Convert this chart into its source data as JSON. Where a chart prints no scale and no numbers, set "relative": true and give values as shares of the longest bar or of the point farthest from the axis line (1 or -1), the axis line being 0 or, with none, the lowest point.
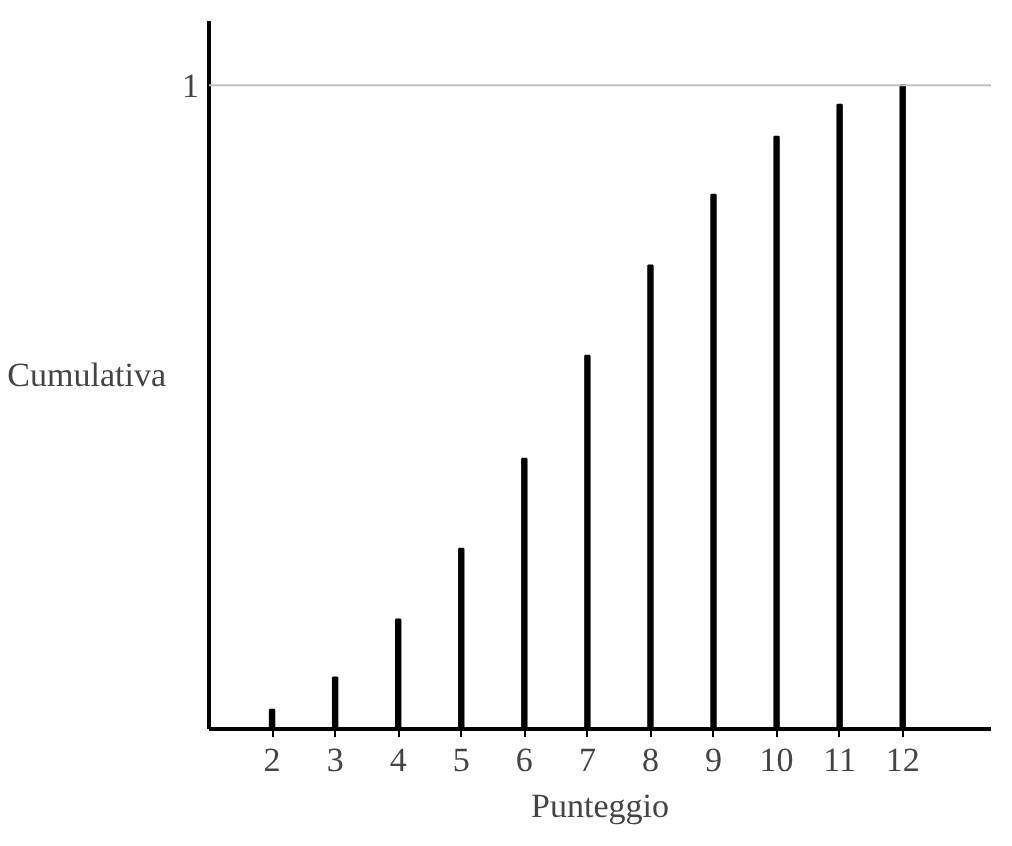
{
  "chart_data": {
    "type": "bar",
    "relative": true,
    "xlabel": "Punteggio",
    "ylabel": "Cumulativa",
    "x": [
      2,
      3,
      4,
      5,
      6,
      7,
      8,
      9,
      10,
      11,
      12
    ],
    "values": [
      0.03,
      0.08,
      0.17,
      0.28,
      0.42,
      0.58,
      0.72,
      0.83,
      0.92,
      0.97,
      1
    ],
    "color": "#000000",
    "xlim": [
      1,
      13.4
    ],
    "xticks": [
      2,
      3,
      4,
      5,
      6,
      7,
      8,
      9,
      10,
      11,
      12
    ],
    "ref_lines": [
      {
        "axis": "y",
        "value": 1,
        "label": "1",
        "color": "#c0c0c0"
      }
    ],
    "grid": false
  }
}
